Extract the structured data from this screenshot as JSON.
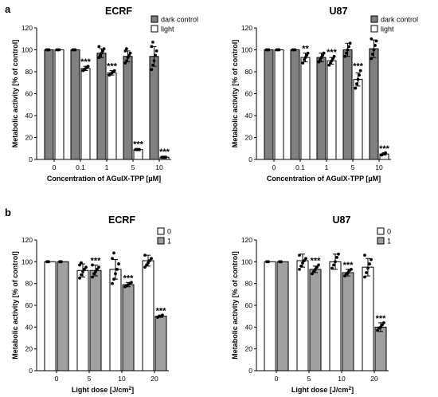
{
  "panels": [
    {
      "letter": "a"
    },
    {
      "letter": "b"
    }
  ],
  "chart_data": [
    {
      "type": "bar",
      "title": "ECRF",
      "xlabel": "Concentration of AGuIX-TPP [µM]",
      "ylabel": "Metabolic activity [% of control]",
      "ylim": [
        0,
        120
      ],
      "yticks": [
        0,
        20,
        40,
        60,
        80,
        100,
        120
      ],
      "categories": [
        "0",
        "0.1",
        "1",
        "5",
        "10"
      ],
      "legend_position": "top-right",
      "series": [
        {
          "name": "dark control",
          "color": "#808080",
          "values": [
            100,
            100,
            97,
            94,
            94
          ],
          "err": [
            0,
            0,
            4,
            5,
            9
          ],
          "points": [
            [
              100,
              100,
              100
            ],
            [
              100,
              100,
              100
            ],
            [
              93,
              95,
              97,
              99,
              101,
              103
            ],
            [
              88,
              90,
              93,
              95,
              97,
              99,
              101
            ],
            [
              82,
              86,
              90,
              95,
              99,
              103,
              107
            ]
          ],
          "sig": [
            "",
            "",
            "",
            "",
            ""
          ]
        },
        {
          "name": "light",
          "color": "#ffffff",
          "values": [
            100,
            83,
            79,
            9,
            2
          ],
          "err": [
            0,
            2,
            2,
            1,
            1
          ],
          "points": [
            [
              100,
              100,
              100
            ],
            [
              81,
              82,
              83,
              84,
              85
            ],
            [
              77,
              78,
              79,
              80,
              81
            ],
            [
              9,
              9,
              9,
              9
            ],
            [
              2,
              2,
              2,
              2
            ]
          ],
          "sig": [
            "",
            "***",
            "***",
            "***",
            "***"
          ]
        }
      ]
    },
    {
      "type": "bar",
      "title": "U87",
      "xlabel": "Concentration of AGuIX-TPP [µM]",
      "ylabel": "Metabolic activity [% of control]",
      "ylim": [
        0,
        120
      ],
      "yticks": [
        0,
        20,
        40,
        60,
        80,
        100,
        120
      ],
      "categories": [
        "0",
        "0.1",
        "1",
        "5",
        "10"
      ],
      "legend_position": "top-right",
      "series": [
        {
          "name": "dark control",
          "color": "#808080",
          "values": [
            100,
            100,
            93,
            100,
            101
          ],
          "err": [
            0,
            0,
            4,
            6,
            8
          ],
          "points": [
            [
              100,
              100,
              100
            ],
            [
              100,
              100,
              100
            ],
            [
              89,
              91,
              93,
              95,
              97
            ],
            [
              94,
              97,
              100,
              103,
              106
            ],
            [
              92,
              96,
              100,
              104,
              108,
              110
            ]
          ],
          "sig": [
            "",
            "",
            "",
            "",
            ""
          ]
        },
        {
          "name": "light",
          "color": "#ffffff",
          "values": [
            100,
            93,
            90,
            73,
            5
          ],
          "err": [
            0,
            4,
            3,
            6,
            1
          ],
          "points": [
            [
              100,
              100,
              100
            ],
            [
              88,
              91,
              93,
              95,
              97
            ],
            [
              86,
              88,
              90,
              92,
              94
            ],
            [
              65,
              69,
              73,
              77,
              81
            ],
            [
              4,
              5,
              5,
              6
            ]
          ],
          "sig": [
            "",
            "**",
            "***",
            "***",
            "***"
          ]
        }
      ]
    },
    {
      "type": "bar",
      "title": "ECRF",
      "xlabel": "Light dose [J/cm²]",
      "ylabel": "Metabolic activity [% of control]",
      "ylim": [
        0,
        120
      ],
      "yticks": [
        0,
        20,
        40,
        60,
        80,
        100,
        120
      ],
      "categories": [
        "0",
        "5",
        "10",
        "20"
      ],
      "legend_position": "top-right",
      "series": [
        {
          "name": "0",
          "color": "#ffffff",
          "values": [
            100,
            92,
            93,
            101
          ],
          "err": [
            0,
            6,
            9,
            5
          ],
          "points": [
            [
              100,
              100
            ],
            [
              85,
              88,
              91,
              93,
              95,
              97,
              99
            ],
            [
              80,
              84,
              89,
              93,
              98,
              103,
              108
            ],
            [
              95,
              97,
              99,
              101,
              103,
              106
            ]
          ],
          "sig": [
            "",
            "",
            "",
            ""
          ]
        },
        {
          "name": "1",
          "color": "#a0a0a0",
          "values": [
            100,
            92,
            79,
            50
          ],
          "err": [
            0,
            5,
            2,
            1
          ],
          "points": [
            [
              100,
              100
            ],
            [
              86,
              89,
              91,
              93,
              95,
              97
            ],
            [
              77,
              78,
              79,
              80,
              81
            ],
            [
              49,
              50,
              50,
              51
            ]
          ],
          "sig": [
            "",
            "***",
            "***",
            "***"
          ]
        }
      ]
    },
    {
      "type": "bar",
      "title": "U87",
      "xlabel": "Light dose [J/cm²]",
      "ylabel": "Metabolic activity [% of control]",
      "ylim": [
        0,
        120
      ],
      "yticks": [
        0,
        20,
        40,
        60,
        80,
        100,
        120
      ],
      "categories": [
        "0",
        "5",
        "10",
        "20"
      ],
      "legend_position": "top-right",
      "series": [
        {
          "name": "0",
          "color": "#ffffff",
          "values": [
            100,
            101,
            100,
            95
          ],
          "err": [
            0,
            6,
            7,
            8
          ],
          "points": [
            [
              100,
              100
            ],
            [
              93,
              96,
              99,
              101,
              103,
              106
            ],
            [
              94,
              97,
              100,
              104,
              107
            ],
            [
              86,
              90,
              94,
              98,
              102,
              106
            ]
          ],
          "sig": [
            "",
            "",
            "",
            ""
          ]
        },
        {
          "name": "1",
          "color": "#a0a0a0",
          "values": [
            100,
            93,
            90,
            40
          ],
          "err": [
            0,
            3,
            3,
            4
          ],
          "points": [
            [
              100,
              100
            ],
            [
              89,
              91,
              93,
              95,
              97
            ],
            [
              87,
              89,
              90,
              92,
              93
            ],
            [
              37,
              39,
              40,
              42,
              44
            ]
          ],
          "sig": [
            "",
            "***",
            "***",
            "***"
          ]
        }
      ]
    }
  ]
}
